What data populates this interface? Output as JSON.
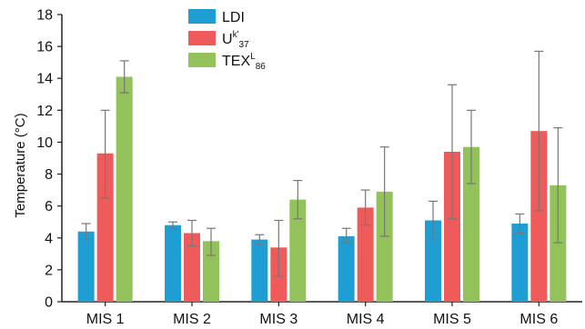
{
  "chart_data": {
    "type": "bar",
    "ylabel": "Temperature (°C)",
    "ylim": [
      0,
      18
    ],
    "yticks": [
      0,
      2,
      4,
      6,
      8,
      10,
      12,
      14,
      16,
      18
    ],
    "grid": false,
    "legend_position": "top-center",
    "categories": [
      "MIS 1",
      "MIS 2",
      "MIS 3",
      "MIS 4",
      "MIS 5",
      "MIS 6"
    ],
    "series": [
      {
        "name": "LDI",
        "legend_label": {
          "base": "LDI",
          "sup": "",
          "sub": ""
        },
        "color": "#1f9ed4",
        "values": [
          4.4,
          4.8,
          3.9,
          4.1,
          5.1,
          4.9
        ],
        "error_low": [
          3.9,
          4.6,
          3.6,
          3.7,
          3.9,
          4.3
        ],
        "error_high": [
          4.9,
          5.0,
          4.2,
          4.6,
          6.3,
          5.5
        ]
      },
      {
        "name": "Uk'37",
        "legend_label": {
          "base": "U",
          "sup": "k'",
          "sub": "37"
        },
        "color": "#ef5a5a",
        "values": [
          9.3,
          4.3,
          3.4,
          5.9,
          9.4,
          10.7
        ],
        "error_low": [
          6.5,
          3.5,
          1.6,
          4.8,
          5.2,
          5.7
        ],
        "error_high": [
          12.0,
          5.1,
          5.1,
          7.0,
          13.6,
          15.7
        ]
      },
      {
        "name": "TEXL86",
        "legend_label": {
          "base": "TEX",
          "sup": "L",
          "sub": "86"
        },
        "color": "#93c15a",
        "values": [
          14.1,
          3.8,
          6.4,
          6.9,
          9.7,
          7.3
        ],
        "error_low": [
          13.1,
          2.9,
          5.2,
          4.1,
          7.4,
          3.7
        ],
        "error_high": [
          15.1,
          4.6,
          7.6,
          9.7,
          12.0,
          10.9
        ]
      }
    ]
  }
}
